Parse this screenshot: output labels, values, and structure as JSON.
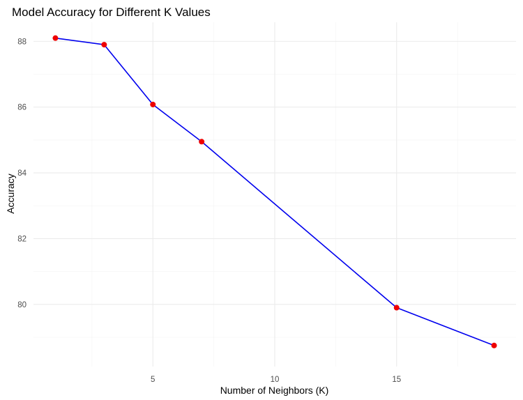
{
  "chart_data": {
    "type": "line",
    "title": "Model Accuracy for Different K Values",
    "xlabel": "Number of Neighbors (K)",
    "ylabel": "Accuracy",
    "x": [
      1,
      3,
      5,
      7,
      15,
      19
    ],
    "series": [
      {
        "values": [
          88.1,
          87.9,
          86.08,
          84.95,
          79.9,
          78.75
        ]
      }
    ],
    "xlim": [
      0.1,
      19.9
    ],
    "ylim": [
      78.11,
      88.58
    ],
    "x_ticks": [
      5,
      10,
      15
    ],
    "x_tick_labels": [
      "5",
      "10",
      "15"
    ],
    "y_ticks": [
      80,
      82,
      84,
      86,
      88
    ],
    "y_tick_labels": [
      "80",
      "82",
      "84",
      "86",
      "88"
    ],
    "grid": true,
    "legend": "none",
    "colors": {
      "line": "#0000ee",
      "points": "#ee0000"
    }
  }
}
